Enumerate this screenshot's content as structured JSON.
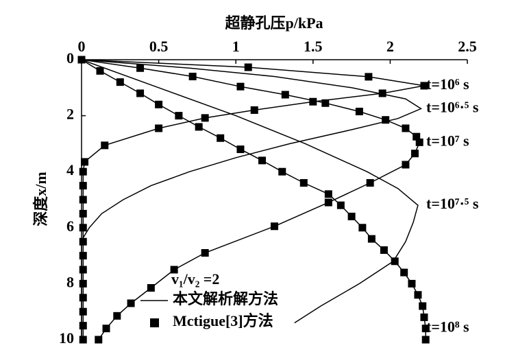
{
  "chart_data": {
    "type": "line",
    "title": "超静孔压p/kPa",
    "y_label": "深度x/m",
    "xlim": [
      0,
      2.5
    ],
    "xticks": [
      0,
      0.5,
      1,
      1.5,
      2,
      2.5
    ],
    "ylim": [
      0,
      10
    ],
    "yticks": [
      0,
      2,
      4,
      6,
      8,
      10
    ],
    "y_inverted": true,
    "color": "#000000",
    "legend": {
      "title": "v₁/v₂ =2",
      "line": "本文解析解方法",
      "marker": "Mctigue[3]方法"
    },
    "series": [
      {
        "name": "t=10⁶ s",
        "markers": true,
        "depth": [
          0,
          0.27,
          0.61,
          0.93,
          1.2,
          1.5,
          1.8,
          2.08,
          2.45,
          3.06,
          3.65,
          4,
          4.5,
          5,
          5.5,
          6,
          6.5,
          7,
          7.5,
          8,
          8.5,
          9,
          9.5,
          10
        ],
        "values": [
          0,
          1.08,
          1.86,
          2.22,
          1.95,
          1.5,
          1.12,
          0.8,
          0.5,
          0.15,
          0.02,
          0.01,
          0.01,
          0.01,
          0.01,
          0.01,
          0.01,
          0.01,
          0.01,
          0.01,
          0.01,
          0.01,
          0.01,
          0.01
        ]
      },
      {
        "name": "t=10⁶·⁵ s",
        "markers": false,
        "depth": [
          0,
          0.3,
          0.6,
          1,
          1.4,
          1.75,
          2.1,
          2.5,
          3,
          3.5,
          4,
          4.5,
          5,
          5.5,
          6,
          6.45,
          7,
          8,
          10
        ],
        "values": [
          0,
          0.7,
          1.25,
          1.75,
          2.1,
          2.2,
          2.05,
          1.75,
          1.35,
          1,
          0.7,
          0.45,
          0.27,
          0.13,
          0.05,
          0,
          0,
          0,
          0
        ]
      },
      {
        "name": "t=10⁷ s",
        "markers": true,
        "depth": [
          0,
          0.3,
          0.6,
          0.96,
          1.25,
          1.55,
          1.85,
          2.15,
          2.45,
          2.75,
          2.95,
          3.35,
          3.75,
          4.4,
          5.1,
          5.95,
          6.9,
          7.5,
          8.15,
          8.7,
          9.15,
          9.6,
          10
        ],
        "values": [
          0,
          0.38,
          0.72,
          1.03,
          1.32,
          1.58,
          1.8,
          1.97,
          2.1,
          2.17,
          2.19,
          2.16,
          2.1,
          1.87,
          1.6,
          1.25,
          0.8,
          0.6,
          0.45,
          0.32,
          0.23,
          0.16,
          0.11
        ]
      },
      {
        "name": "t=10⁷·⁵ s",
        "markers": false,
        "depth": [
          0,
          1,
          2,
          3,
          4,
          4.6,
          5.2,
          5.8,
          6.5,
          7.2,
          8,
          8.8,
          9.4
        ],
        "values": [
          0,
          0.5,
          1,
          1.45,
          1.85,
          2.05,
          2.18,
          2.15,
          2.1,
          2.02,
          1.8,
          1.55,
          1.38
        ]
      },
      {
        "name": "t=10⁸ s",
        "markers": true,
        "depth": [
          0,
          0.4,
          0.8,
          1.2,
          1.6,
          2,
          2.4,
          2.8,
          3.2,
          3.6,
          4,
          4.4,
          4.8,
          5.2,
          5.6,
          6,
          6.4,
          6.8,
          7.2,
          7.6,
          8,
          8.4,
          8.8,
          9.2,
          9.6,
          10
        ],
        "values": [
          0,
          0.12,
          0.25,
          0.38,
          0.5,
          0.63,
          0.76,
          0.9,
          1.03,
          1.17,
          1.3,
          1.44,
          1.6,
          1.68,
          1.75,
          1.82,
          1.88,
          1.96,
          2.03,
          2.09,
          2.14,
          2.18,
          2.21,
          2.22,
          2.23,
          2.23
        ]
      }
    ]
  }
}
